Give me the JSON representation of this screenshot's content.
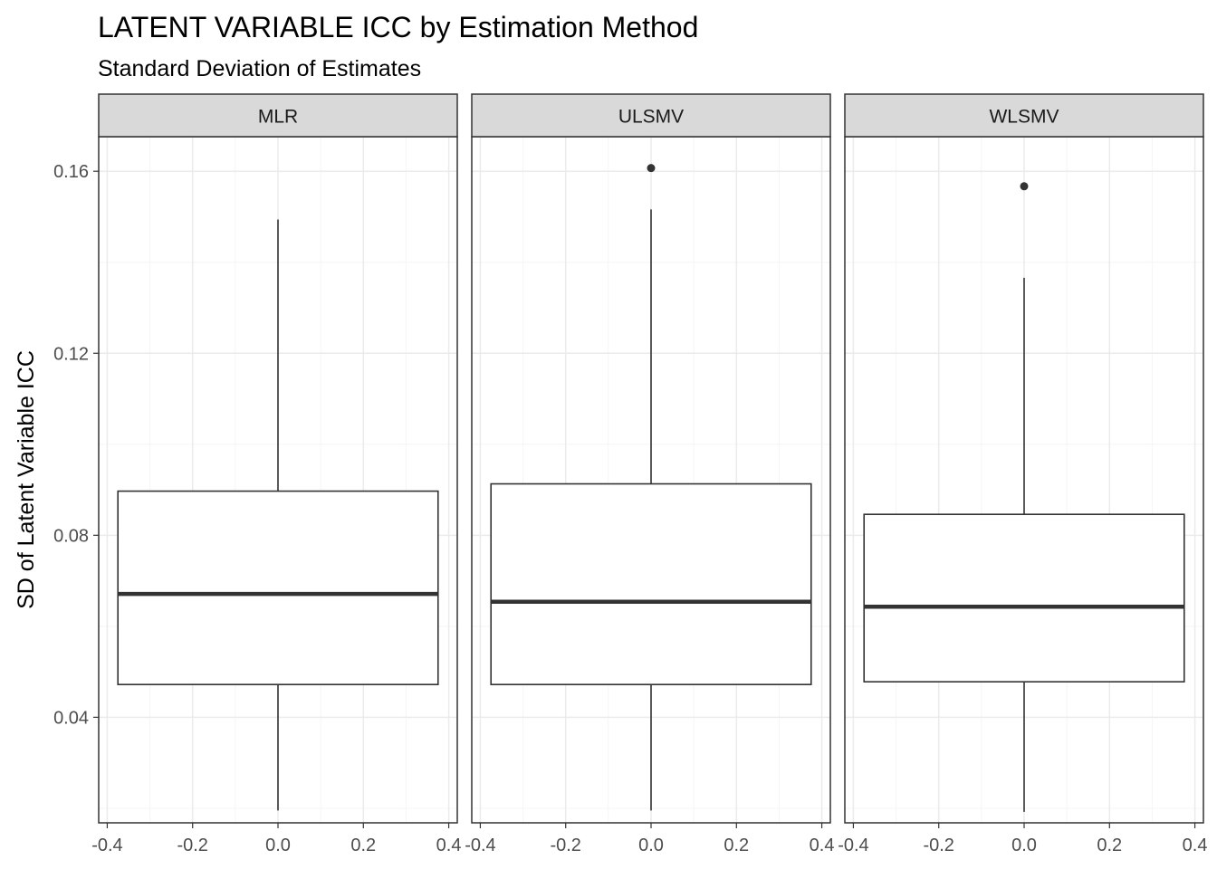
{
  "chart_data": {
    "type": "boxplot",
    "title": "LATENT VARIABLE ICC by Estimation Method",
    "subtitle": "Standard Deviation of Estimates",
    "xlabel": "",
    "ylabel": "SD of Latent Variable ICC",
    "facets": [
      "MLR",
      "ULSMV",
      "WLSMV"
    ],
    "xlim": [
      -0.42,
      0.42
    ],
    "x_ticks": [
      -0.4,
      -0.2,
      0.0,
      0.2,
      0.4
    ],
    "x_tick_labels": [
      "-0.4",
      "-0.2",
      "0.0",
      "0.2",
      "0.4"
    ],
    "ylim": [
      0.0168,
      0.1676
    ],
    "y_ticks": [
      0.04,
      0.08,
      0.12,
      0.16
    ],
    "y_tick_labels": [
      "0.04",
      "0.08",
      "0.12",
      "0.16"
    ],
    "grid": true,
    "box_width": [
      -0.375,
      0.375
    ],
    "boxes": [
      {
        "facet": "MLR",
        "whisker_low": 0.0195,
        "q1": 0.0472,
        "median": 0.0671,
        "q3": 0.0897,
        "whisker_high": 0.1494,
        "outliers": []
      },
      {
        "facet": "ULSMV",
        "whisker_low": 0.0195,
        "q1": 0.0472,
        "median": 0.0654,
        "q3": 0.0913,
        "whisker_high": 0.1516,
        "outliers": [
          0.1607
        ]
      },
      {
        "facet": "WLSMV",
        "whisker_low": 0.0192,
        "q1": 0.0478,
        "median": 0.0643,
        "q3": 0.0846,
        "whisker_high": 0.1366,
        "outliers": [
          0.1567
        ]
      }
    ],
    "colors": {
      "box_fill": "#ffffff",
      "line": "#333333",
      "strip_fill": "#d9d9d9",
      "grid_major": "#ebebeb",
      "grid_minor": "#f5f5f5"
    }
  }
}
